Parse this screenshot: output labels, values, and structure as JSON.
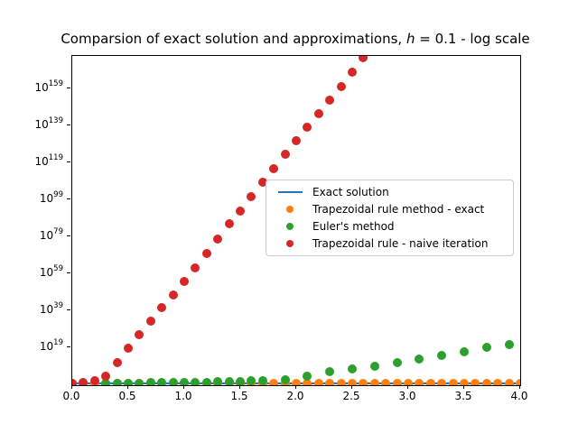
{
  "title": {
    "prefix": "Comparsion of exact solution and approximations, ",
    "math_var": "h",
    "suffix": " = 0.1 - log scale"
  },
  "chart_data": {
    "type": "scatter",
    "title": "Comparsion of exact solution and approximations, h = 0.1 - log scale",
    "xlabel": "",
    "ylabel": "",
    "grid": false,
    "x_axis": {
      "min": 0.0,
      "max": 4.0,
      "ticks": [
        0.0,
        0.5,
        1.0,
        1.5,
        2.0,
        2.5,
        3.0,
        3.5,
        4.0
      ]
    },
    "y_axis": {
      "scale": "log",
      "tick_exponents": [
        19,
        39,
        59,
        79,
        99,
        119,
        139,
        159
      ],
      "log10_min": -1,
      "log10_max": 177
    },
    "legend": {
      "position": "center-right"
    },
    "series": [
      {
        "name": "Exact solution",
        "marker": "line",
        "color": "#1f77b4",
        "x": [
          0.0,
          4.0
        ],
        "log10y": [
          0,
          0
        ]
      },
      {
        "name": "Trapezoidal rule method - exact",
        "marker": "circle",
        "color": "#ff7f0e",
        "x": [
          0.0,
          0.1,
          0.2,
          0.3,
          0.4,
          0.5,
          0.6,
          0.7,
          0.8,
          0.9,
          1.0,
          1.1,
          1.2,
          1.3,
          1.4,
          1.5,
          1.6,
          1.7,
          1.8,
          1.9,
          2.0,
          2.1,
          2.2,
          2.3,
          2.4,
          2.5,
          2.6,
          2.7,
          2.8,
          2.9,
          3.0,
          3.1,
          3.2,
          3.3,
          3.4,
          3.5,
          3.6,
          3.7,
          3.8,
          3.9,
          4.0
        ],
        "log10y": [
          0,
          0,
          0,
          0,
          0,
          0,
          0,
          0,
          0,
          0,
          0,
          0,
          0,
          0,
          0,
          0,
          0,
          0,
          0,
          0,
          0,
          0,
          0,
          0,
          0,
          0,
          0,
          0,
          0,
          0,
          0,
          0,
          0,
          0,
          0,
          0,
          0,
          0,
          0,
          0,
          0
        ]
      },
      {
        "name": "Euler's method",
        "marker": "circle",
        "color": "#2ca02c",
        "x": [
          0.3,
          0.4,
          0.5,
          0.6,
          0.7,
          0.8,
          0.9,
          1.0,
          1.1,
          1.2,
          1.3,
          1.4,
          1.5,
          1.6,
          1.7,
          1.9,
          2.1,
          2.3,
          2.5,
          2.7,
          2.9,
          3.1,
          3.3,
          3.5,
          3.7,
          3.9
        ],
        "log10y": [
          0.1,
          0.12,
          0.15,
          0.2,
          0.25,
          0.3,
          0.38,
          0.45,
          0.55,
          0.65,
          0.8,
          0.95,
          1.1,
          1.3,
          1.55,
          1.9,
          3.9,
          6.3,
          7.8,
          9.3,
          11.2,
          13.1,
          15.1,
          17.1,
          19.5,
          21.0
        ]
      },
      {
        "name": "Trapezoidal rule - naive iteration",
        "marker": "circle",
        "color": "#d62728",
        "x": [
          0.0,
          0.1,
          0.2,
          0.3,
          0.4,
          0.5,
          0.6,
          0.7,
          0.8,
          0.9,
          1.0,
          1.1,
          1.2,
          1.3,
          1.4,
          1.5,
          1.6,
          1.7,
          1.8,
          1.9,
          2.0,
          2.1,
          2.2,
          2.3,
          2.4,
          2.5,
          2.6
        ],
        "log10y": [
          0,
          0.4,
          1.2,
          4.0,
          11.2,
          19.0,
          26.3,
          33.5,
          40.8,
          48.0,
          55.2,
          62.5,
          70.0,
          78.0,
          86.2,
          93.2,
          101.0,
          108.5,
          116.0,
          123.9,
          131.2,
          138.5,
          145.8,
          153.0,
          160.5,
          168.0,
          176.0
        ]
      }
    ]
  }
}
